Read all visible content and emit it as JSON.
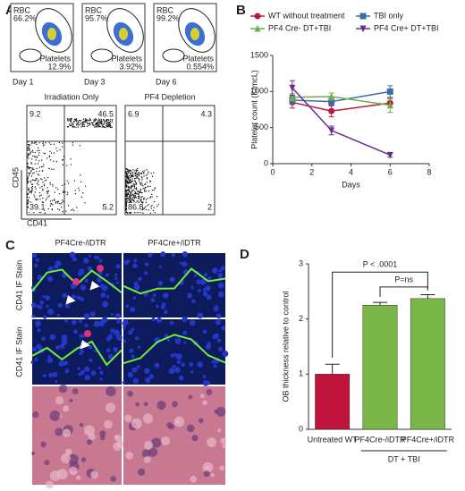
{
  "panel_labels": [
    "A",
    "B",
    "C",
    "D"
  ],
  "panel_a": {
    "days": [
      {
        "day": "Day 1",
        "rbc": "RBC",
        "rbc_pct": "66.2%",
        "plt": "Platelets",
        "plt_pct": "12.9%"
      },
      {
        "day": "Day 3",
        "rbc": "RBC",
        "rbc_pct": "95.7%",
        "plt": "Platelets",
        "plt_pct": "3.92%"
      },
      {
        "day": "Day 6",
        "rbc": "RBC",
        "rbc_pct": "99.2%",
        "plt": "Platelets",
        "plt_pct": "0.554%"
      }
    ],
    "quadrants": [
      {
        "title": "Irradiation Only",
        "ul": "9.2",
        "ur": "46.5",
        "ll": "39.1",
        "lr": "5.2"
      },
      {
        "title": "PF4 Depletion",
        "ul": "6.9",
        "ur": "4.3",
        "ll": "86.8",
        "lr": "2"
      }
    ],
    "ylabel": "CD45",
    "xlabel": "CD41"
  },
  "panel_c": {
    "columns": [
      "PF4Cre-/iDTR",
      "PF4Cre+/iDTR"
    ],
    "rows": [
      "CD41 IF Stain",
      "CD41 IF Stain"
    ]
  },
  "chart_data": [
    {
      "type": "line",
      "xlabel": "Days",
      "ylabel": "Platelet count (K/mcL)",
      "x": [
        1,
        3,
        6
      ],
      "xlim": [
        0,
        8
      ],
      "xticks": [
        0,
        2,
        4,
        6,
        8
      ],
      "ylim": [
        0,
        1500
      ],
      "yticks": [
        0,
        500,
        1000,
        1500
      ],
      "series": [
        {
          "name": "WT without treatment",
          "color": "#c0143c",
          "marker": "circle",
          "values": [
            850,
            730,
            840
          ],
          "errors": [
            80,
            80,
            60
          ]
        },
        {
          "name": "TBI only",
          "color": "#3a6ea5",
          "marker": "square",
          "values": [
            880,
            860,
            1000
          ],
          "errors": [
            60,
            60,
            80
          ]
        },
        {
          "name": "PF4 Cre- DT+TBI",
          "color": "#6ab04c",
          "marker": "triangle",
          "values": [
            920,
            930,
            810
          ],
          "errors": [
            50,
            50,
            100
          ]
        },
        {
          "name": "PF4 Cre+ DT+TBI",
          "color": "#6a2c91",
          "marker": "triangle-down",
          "values": [
            1050,
            460,
            120
          ],
          "errors": [
            100,
            60,
            30
          ]
        }
      ]
    },
    {
      "type": "bar",
      "ylabel": "OB thickness relative to control",
      "categories": [
        "Untreated WT",
        "PF4Cre-/iDTR",
        "PF4Cre+/iDTR"
      ],
      "values": [
        1,
        2.25,
        2.37
      ],
      "errors": [
        0.18,
        0.05,
        0.07
      ],
      "colors": [
        "#c0143c",
        "#7ab648",
        "#7ab648"
      ],
      "ylim": [
        0,
        3
      ],
      "yticks": [
        0,
        1,
        2,
        3
      ],
      "annotations": [
        "P < .0001",
        "P=ns"
      ],
      "group_label": "DT + TBI"
    }
  ]
}
